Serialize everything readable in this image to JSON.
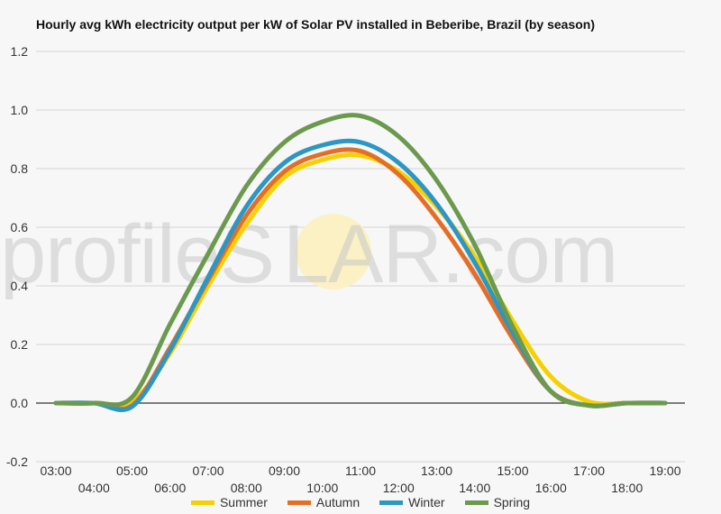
{
  "chart_data": {
    "type": "line",
    "title": "Hourly avg kWh electricity output per kW of Solar PV installed in Beberibe, Brazil (by season)",
    "xlabel": "",
    "ylabel": "",
    "ylim": [
      -0.2,
      1.2
    ],
    "yticks": [
      "1.2",
      "1.0",
      "0.8",
      "0.6",
      "0.4",
      "0.2",
      "0.0",
      "-0.2"
    ],
    "x": [
      "03:00",
      "04:00",
      "05:00",
      "06:00",
      "07:00",
      "08:00",
      "09:00",
      "10:00",
      "11:00",
      "12:00",
      "13:00",
      "14:00",
      "15:00",
      "16:00",
      "17:00",
      "18:00",
      "19:00"
    ],
    "grid": true,
    "legend_position": "bottom",
    "series": [
      {
        "name": "Summer",
        "color": "#f6d000",
        "values": [
          0,
          0,
          0.005,
          0.17,
          0.4,
          0.61,
          0.77,
          0.83,
          0.845,
          0.79,
          0.67,
          0.5,
          0.28,
          0.09,
          0.005,
          0,
          0
        ]
      },
      {
        "name": "Autumn",
        "color": "#e36f26",
        "values": [
          0,
          0,
          -0.008,
          0.19,
          0.42,
          0.64,
          0.79,
          0.85,
          0.86,
          0.78,
          0.63,
          0.44,
          0.22,
          0.04,
          -0.008,
          0,
          0
        ]
      },
      {
        "name": "Winter",
        "color": "#2c96c4",
        "values": [
          0,
          0,
          -0.012,
          0.18,
          0.43,
          0.67,
          0.82,
          0.88,
          0.89,
          0.82,
          0.68,
          0.48,
          0.24,
          0.04,
          -0.008,
          0,
          0
        ]
      },
      {
        "name": "Spring",
        "color": "#6b9a4e",
        "values": [
          0,
          0,
          0.02,
          0.27,
          0.51,
          0.74,
          0.89,
          0.96,
          0.98,
          0.91,
          0.76,
          0.54,
          0.26,
          0.04,
          -0.008,
          0,
          0
        ]
      }
    ]
  },
  "watermark": {
    "part1": "profile",
    "part2": "S",
    "part3": "LAR",
    "part4": ".com"
  }
}
